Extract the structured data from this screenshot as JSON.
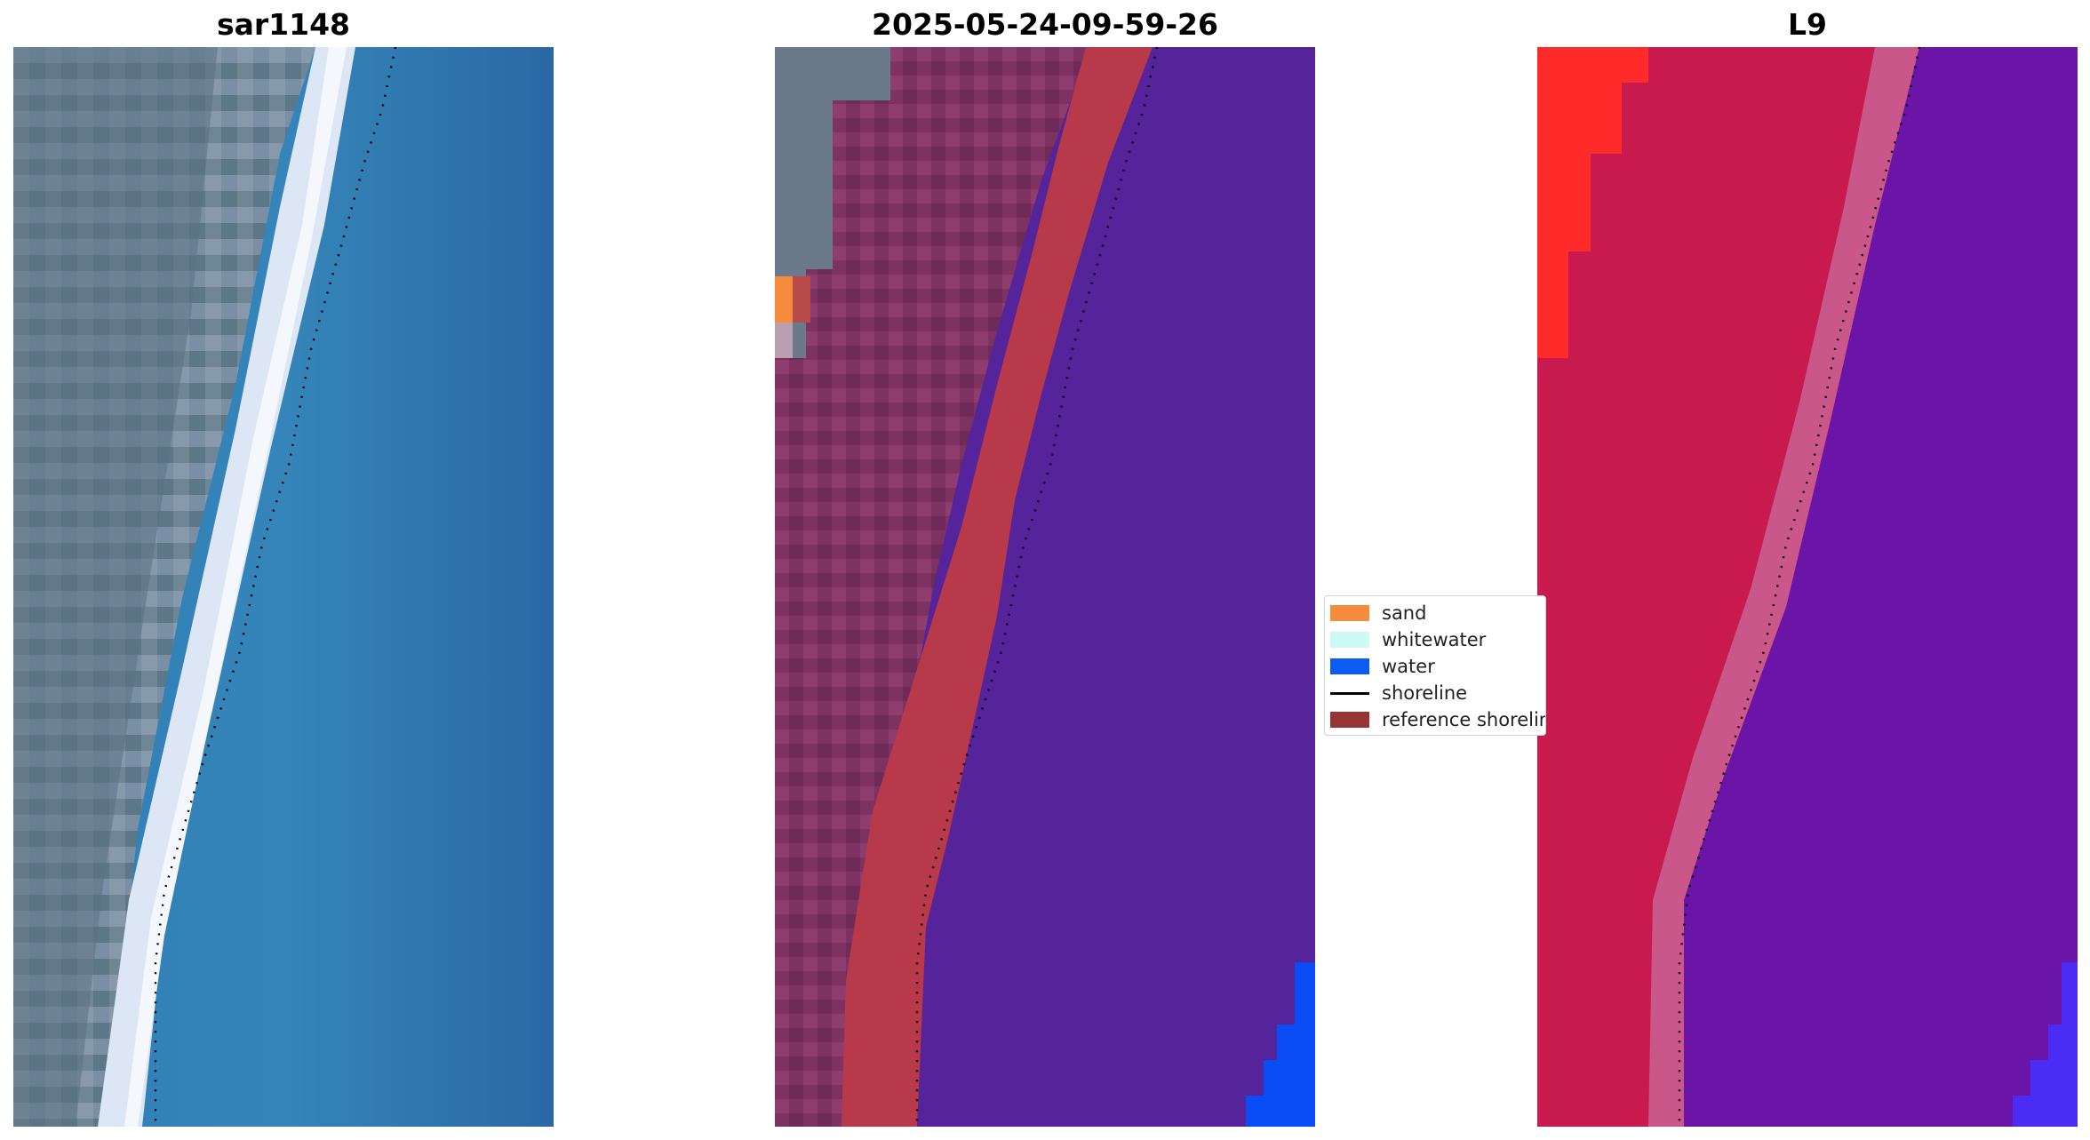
{
  "panels": [
    {
      "title": "sar1148"
    },
    {
      "title": "2025-05-24-09-59-26"
    },
    {
      "title": "L9"
    }
  ],
  "legend": {
    "items": [
      {
        "label": "sand",
        "color": "#f58b3c"
      },
      {
        "label": "whitewater",
        "color": "#ccfaf5"
      },
      {
        "label": "water",
        "color": "#0a5cf5"
      },
      {
        "label": "shoreline",
        "color": "#000000"
      },
      {
        "label": "reference shoreline",
        "color": "#993434"
      }
    ]
  }
}
